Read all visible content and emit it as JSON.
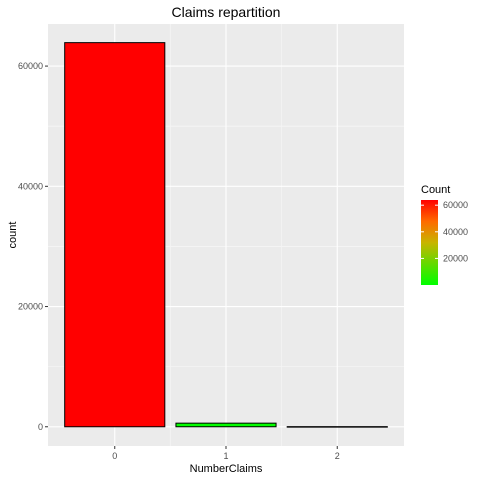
{
  "chart_data": {
    "type": "bar",
    "title": "Claims repartition",
    "xlabel": "NumberClaims",
    "ylabel": "count",
    "categories": [
      "0",
      "1",
      "2"
    ],
    "values": [
      63900,
      600,
      20
    ],
    "ylim": [
      -3200,
      67000
    ],
    "yticks": [
      0,
      20000,
      40000,
      60000
    ],
    "ytick_labels": [
      "0",
      "20000",
      "40000",
      "60000"
    ],
    "grid": true,
    "legend": {
      "title": "Count",
      "position": "right",
      "type": "colorbar",
      "range": [
        20,
        63900
      ],
      "ticks": [
        20000,
        40000,
        60000
      ],
      "tick_labels": [
        "20000",
        "40000",
        "60000"
      ],
      "colors": {
        "low": "#00ff00",
        "high": "#ff0000"
      }
    },
    "colors": {
      "panel_background": "#ebebeb",
      "grid": "#ffffff",
      "bar_outline": "#000000"
    }
  }
}
